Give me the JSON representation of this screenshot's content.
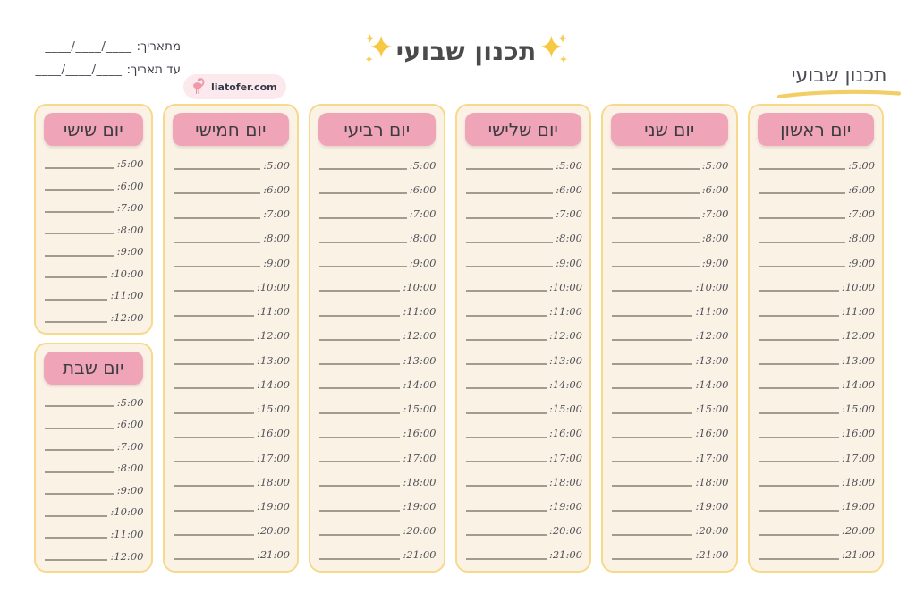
{
  "header": {
    "title": "תכנון שבועי",
    "corner_title": "תכנון שבועי",
    "date_from_label": "מתאריך:",
    "date_from_blank": "____/____/____",
    "date_to_label": "עד תאריך:",
    "date_to_blank": "____/____/____",
    "logo": {
      "text": "liatofer.com",
      "icon": "flamingo-icon"
    }
  },
  "board": {
    "columns": [
      {
        "id": "sunday",
        "label": "יום ראשון",
        "times": [
          "5:00:",
          "6:00:",
          "7:00:",
          "8:00:",
          "9:00:",
          "10:00:",
          "11:00:",
          "12:00:",
          "13:00:",
          "14:00:",
          "15:00:",
          "16:00:",
          "17:00:",
          "18:00:",
          "19:00:",
          "20:00:",
          "21:00:"
        ]
      },
      {
        "id": "monday",
        "label": "יום שני",
        "times": [
          "5:00:",
          "6:00:",
          "7:00:",
          "8:00:",
          "9:00:",
          "10:00:",
          "11:00:",
          "12:00:",
          "13:00:",
          "14:00:",
          "15:00:",
          "16:00:",
          "17:00:",
          "18:00:",
          "19:00:",
          "20:00:",
          "21:00:"
        ]
      },
      {
        "id": "tuesday",
        "label": "יום שלישי",
        "times": [
          "5:00:",
          "6:00:",
          "7:00:",
          "8:00:",
          "9:00:",
          "10:00:",
          "11:00:",
          "12:00:",
          "13:00:",
          "14:00:",
          "15:00:",
          "16:00:",
          "17:00:",
          "18:00:",
          "19:00:",
          "20:00:",
          "21:00:"
        ]
      },
      {
        "id": "wednesday",
        "label": "יום רביעי",
        "times": [
          "5:00:",
          "6:00:",
          "7:00:",
          "8:00:",
          "9:00:",
          "10:00:",
          "11:00:",
          "12:00:",
          "13:00:",
          "14:00:",
          "15:00:",
          "16:00:",
          "17:00:",
          "18:00:",
          "19:00:",
          "20:00:",
          "21:00:"
        ]
      },
      {
        "id": "thursday",
        "label": "יום חמישי",
        "times": [
          "5:00:",
          "6:00:",
          "7:00:",
          "8:00:",
          "9:00:",
          "10:00:",
          "11:00:",
          "12:00:",
          "13:00:",
          "14:00:",
          "15:00:",
          "16:00:",
          "17:00:",
          "18:00:",
          "19:00:",
          "20:00:",
          "21:00:"
        ]
      }
    ],
    "side_columns": [
      {
        "id": "friday",
        "label": "יום שישי",
        "times": [
          "5:00:",
          "6:00:",
          "7:00:",
          "8:00:",
          "9:00:",
          "10:00:",
          "11:00:",
          "12:00:"
        ]
      },
      {
        "id": "saturday",
        "label": "יום שבת",
        "times": [
          "5:00:",
          "6:00:",
          "7:00:",
          "8:00:",
          "9:00:",
          "10:00:",
          "11:00:",
          "12:00:"
        ]
      }
    ]
  },
  "colors": {
    "box_border": "#f7d98c",
    "box_bg": "#fbf2e6",
    "header_pink": "#f0a4b7",
    "line_gray": "#a29b90",
    "accent_yellow": "#f5c944",
    "logo_bg": "#fce9ee",
    "flamingo_pink": "#ef9aa8"
  }
}
